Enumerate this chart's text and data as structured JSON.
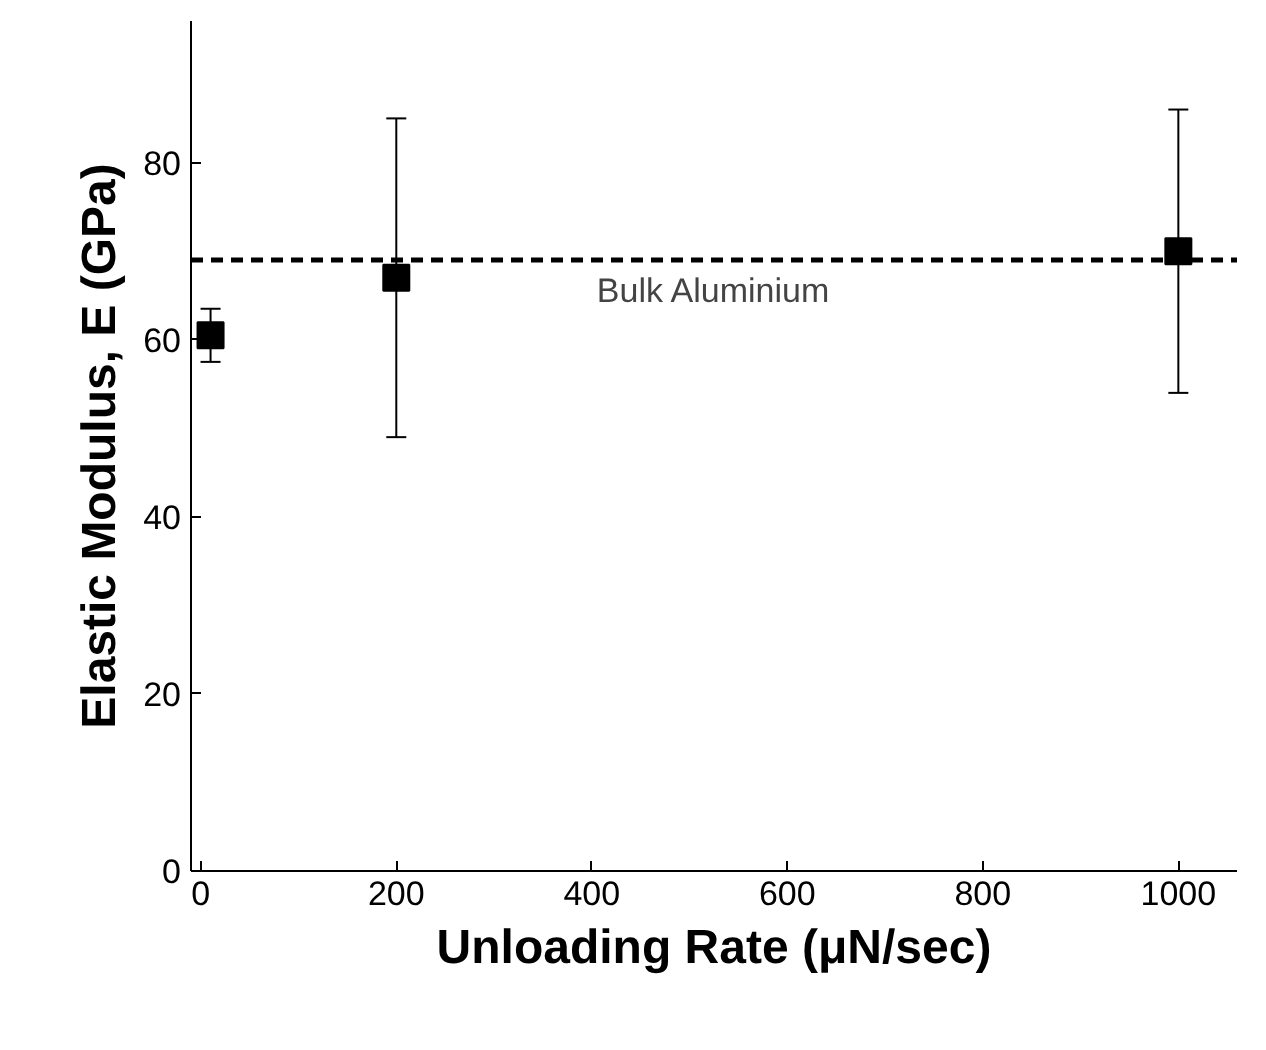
{
  "chart_data": {
    "type": "scatter",
    "xlabel": "Unloading Rate (μN/sec)",
    "ylabel": "Elastic Modulus, E (GPa)",
    "x": [
      10,
      200,
      1000
    ],
    "series": [
      {
        "color": "#000000",
        "values": [
          60.5,
          67,
          70
        ],
        "errors": [
          [
            57.5,
            63.5
          ],
          [
            49,
            85
          ],
          [
            54,
            86
          ]
        ]
      }
    ],
    "marker": "square",
    "xlim": [
      -10,
      1060
    ],
    "ylim": [
      0,
      96
    ],
    "xticks": [
      0,
      200,
      400,
      600,
      800,
      1000
    ],
    "yticks": [
      0,
      20,
      40,
      60,
      80
    ],
    "ref_lines": [
      {
        "axis": "y",
        "value": 69,
        "label": "Bulk Aluminium",
        "color": "#000000",
        "line_style": "dashed"
      }
    ],
    "grid": false
  }
}
